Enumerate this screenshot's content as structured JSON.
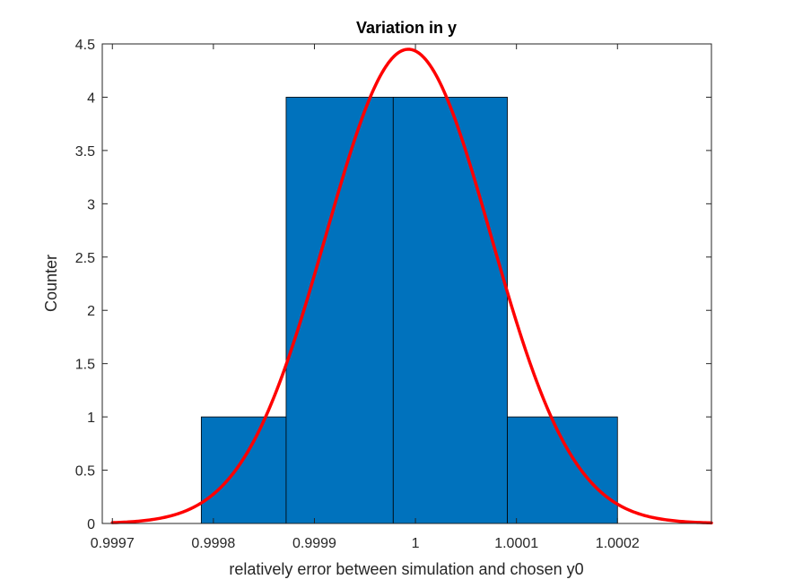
{
  "chart_data": {
    "type": "bar",
    "subtype": "histogram-with-fit-curve",
    "title": "Variation in y",
    "xlabel": "relatively error between simulation and chosen y0",
    "ylabel": "Counter",
    "xlim": [
      0.99969,
      1.000293
    ],
    "ylim": [
      0,
      4.5
    ],
    "xticks": [
      0.9997,
      0.9998,
      0.9999,
      1,
      1.0001,
      1.0002
    ],
    "xtick_labels": [
      "0.9997",
      "0.9998",
      "0.9999",
      "1",
      "1.0001",
      "1.0002"
    ],
    "yticks": [
      0,
      0.5,
      1,
      1.5,
      2,
      2.5,
      3,
      3.5,
      4,
      4.5
    ],
    "ytick_labels": [
      "0",
      "0.5",
      "1",
      "1.5",
      "2",
      "2.5",
      "3",
      "3.5",
      "4",
      "4.5"
    ],
    "bin_edges": [
      0.999788,
      0.999872,
      0.999978,
      1.000091,
      1.0002
    ],
    "bars": [
      {
        "x_start": 0.999788,
        "x_end": 0.999872,
        "value": 1
      },
      {
        "x_start": 0.999872,
        "x_end": 0.999978,
        "value": 4
      },
      {
        "x_start": 0.999978,
        "x_end": 1.000091,
        "value": 4
      },
      {
        "x_start": 1.000091,
        "x_end": 1.0002,
        "value": 1
      }
    ],
    "fit_curve": {
      "kind": "normal",
      "mean": 0.999993,
      "peak": 4.45,
      "sigma": 8.18e-05
    },
    "grid": false,
    "legend": "none",
    "colors": {
      "bar_fill": "#0072BD",
      "bar_edge": "#000000",
      "curve": "#FF0000",
      "axes": "#262626"
    }
  }
}
